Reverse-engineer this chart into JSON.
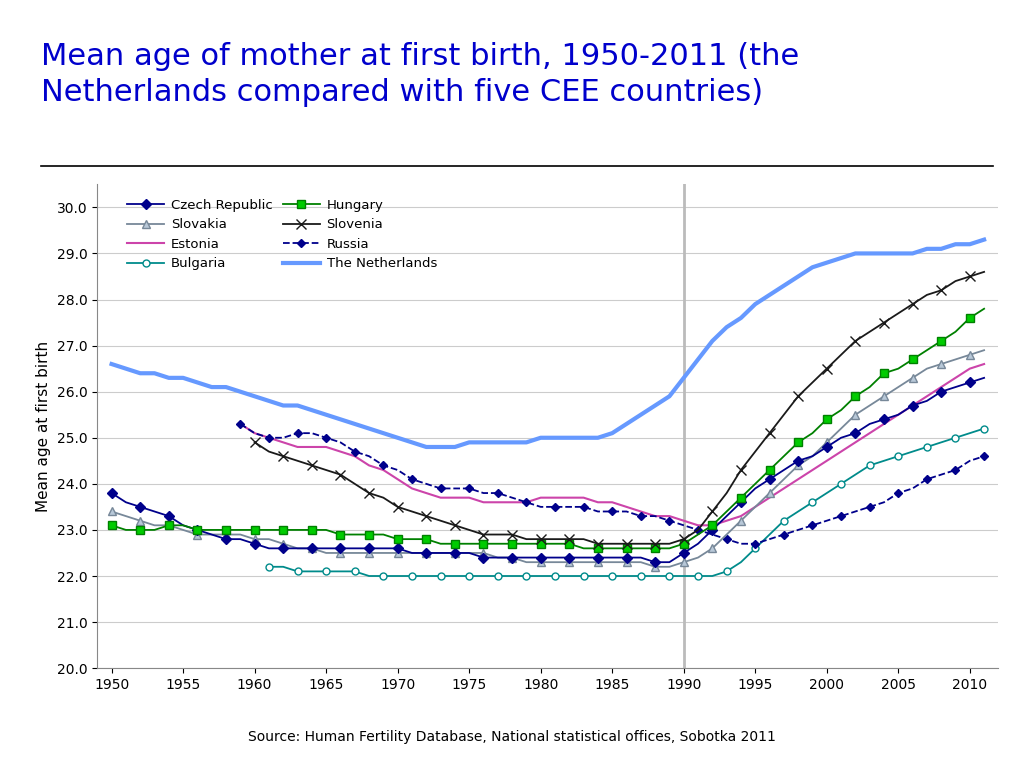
{
  "title_line1": "Mean age of mother at first birth, 1950-2011 (the",
  "title_line2": "Netherlands compared with five CEE countries)",
  "title_color": "#0000CC",
  "ylabel": "Mean age at first birth",
  "source_text": "Source: Human Fertility Database, National statistical offices, Sobotka 2011",
  "vline_x": 1990,
  "ylim": [
    20.0,
    30.5
  ],
  "yticks": [
    20.0,
    21.0,
    22.0,
    23.0,
    24.0,
    25.0,
    26.0,
    27.0,
    28.0,
    29.0,
    30.0
  ],
  "xlim": [
    1949,
    2012
  ],
  "xticks": [
    1950,
    1955,
    1960,
    1965,
    1970,
    1975,
    1980,
    1985,
    1990,
    1995,
    2000,
    2005,
    2010
  ],
  "series": {
    "Czech Republic": {
      "color": "#00008B",
      "marker": "D",
      "markersize": 5,
      "linewidth": 1.3,
      "markerfacecolor": "#00008B",
      "markevery": 2,
      "zorder": 5,
      "data": {
        "1950": 23.8,
        "1951": 23.6,
        "1952": 23.5,
        "1953": 23.4,
        "1954": 23.3,
        "1955": 23.1,
        "1956": 23.0,
        "1957": 22.9,
        "1958": 22.8,
        "1959": 22.8,
        "1960": 22.7,
        "1961": 22.6,
        "1962": 22.6,
        "1963": 22.6,
        "1964": 22.6,
        "1965": 22.6,
        "1966": 22.6,
        "1967": 22.6,
        "1968": 22.6,
        "1969": 22.6,
        "1970": 22.6,
        "1971": 22.5,
        "1972": 22.5,
        "1973": 22.5,
        "1974": 22.5,
        "1975": 22.5,
        "1976": 22.4,
        "1977": 22.4,
        "1978": 22.4,
        "1979": 22.4,
        "1980": 22.4,
        "1981": 22.4,
        "1982": 22.4,
        "1983": 22.4,
        "1984": 22.4,
        "1985": 22.4,
        "1986": 22.4,
        "1987": 22.4,
        "1988": 22.3,
        "1989": 22.3,
        "1990": 22.5,
        "1991": 22.7,
        "1992": 23.0,
        "1993": 23.3,
        "1994": 23.6,
        "1995": 23.9,
        "1996": 24.1,
        "1997": 24.3,
        "1998": 24.5,
        "1999": 24.6,
        "2000": 24.8,
        "2001": 25.0,
        "2002": 25.1,
        "2003": 25.3,
        "2004": 25.4,
        "2005": 25.5,
        "2006": 25.7,
        "2007": 25.8,
        "2008": 26.0,
        "2009": 26.1,
        "2010": 26.2,
        "2011": 26.3
      }
    },
    "Slovakia": {
      "color": "#778899",
      "marker": "^",
      "markersize": 6,
      "linewidth": 1.3,
      "markerfacecolor": "#B8C8D8",
      "markevery": 2,
      "zorder": 4,
      "data": {
        "1950": 23.4,
        "1951": 23.3,
        "1952": 23.2,
        "1953": 23.1,
        "1954": 23.1,
        "1955": 23.0,
        "1956": 22.9,
        "1957": 22.9,
        "1958": 22.9,
        "1959": 22.9,
        "1960": 22.8,
        "1961": 22.8,
        "1962": 22.7,
        "1963": 22.6,
        "1964": 22.6,
        "1965": 22.5,
        "1966": 22.5,
        "1967": 22.5,
        "1968": 22.5,
        "1969": 22.5,
        "1970": 22.5,
        "1971": 22.5,
        "1972": 22.5,
        "1973": 22.5,
        "1974": 22.5,
        "1975": 22.5,
        "1976": 22.5,
        "1977": 22.4,
        "1978": 22.4,
        "1979": 22.3,
        "1980": 22.3,
        "1981": 22.3,
        "1982": 22.3,
        "1983": 22.3,
        "1984": 22.3,
        "1985": 22.3,
        "1986": 22.3,
        "1987": 22.3,
        "1988": 22.2,
        "1989": 22.2,
        "1990": 22.3,
        "1991": 22.4,
        "1992": 22.6,
        "1993": 22.9,
        "1994": 23.2,
        "1995": 23.5,
        "1996": 23.8,
        "1997": 24.1,
        "1998": 24.4,
        "1999": 24.6,
        "2000": 24.9,
        "2001": 25.2,
        "2002": 25.5,
        "2003": 25.7,
        "2004": 25.9,
        "2005": 26.1,
        "2006": 26.3,
        "2007": 26.5,
        "2008": 26.6,
        "2009": 26.7,
        "2010": 26.8,
        "2011": 26.9
      }
    },
    "Estonia": {
      "color": "#CC44AA",
      "marker": "None",
      "markersize": 0,
      "linewidth": 1.5,
      "markerfacecolor": "#CC44AA",
      "markevery": 1,
      "zorder": 3,
      "data": {
        "1959": 25.3,
        "1960": 25.1,
        "1961": 25.0,
        "1962": 24.9,
        "1963": 24.8,
        "1964": 24.8,
        "1965": 24.8,
        "1966": 24.7,
        "1967": 24.6,
        "1968": 24.4,
        "1969": 24.3,
        "1970": 24.1,
        "1971": 23.9,
        "1972": 23.8,
        "1973": 23.7,
        "1974": 23.7,
        "1975": 23.7,
        "1976": 23.6,
        "1977": 23.6,
        "1978": 23.6,
        "1979": 23.6,
        "1980": 23.7,
        "1981": 23.7,
        "1982": 23.7,
        "1983": 23.7,
        "1984": 23.6,
        "1985": 23.6,
        "1986": 23.5,
        "1987": 23.4,
        "1988": 23.3,
        "1989": 23.3,
        "1990": 23.2,
        "1991": 23.1,
        "1992": 23.1,
        "1993": 23.2,
        "1994": 23.3,
        "1995": 23.5,
        "1996": 23.7,
        "1997": 23.9,
        "1998": 24.1,
        "1999": 24.3,
        "2000": 24.5,
        "2001": 24.7,
        "2002": 24.9,
        "2003": 25.1,
        "2004": 25.3,
        "2005": 25.5,
        "2006": 25.7,
        "2007": 25.9,
        "2008": 26.1,
        "2009": 26.3,
        "2010": 26.5,
        "2011": 26.6
      }
    },
    "Bulgaria": {
      "color": "#008B8B",
      "marker": "o",
      "markersize": 5,
      "linewidth": 1.3,
      "markerfacecolor": "white",
      "markevery": 2,
      "zorder": 4,
      "data": {
        "1961": 22.2,
        "1962": 22.2,
        "1963": 22.1,
        "1964": 22.1,
        "1965": 22.1,
        "1966": 22.1,
        "1967": 22.1,
        "1968": 22.0,
        "1969": 22.0,
        "1970": 22.0,
        "1971": 22.0,
        "1972": 22.0,
        "1973": 22.0,
        "1974": 22.0,
        "1975": 22.0,
        "1976": 22.0,
        "1977": 22.0,
        "1978": 22.0,
        "1979": 22.0,
        "1980": 22.0,
        "1981": 22.0,
        "1982": 22.0,
        "1983": 22.0,
        "1984": 22.0,
        "1985": 22.0,
        "1986": 22.0,
        "1987": 22.0,
        "1988": 22.0,
        "1989": 22.0,
        "1990": 22.0,
        "1991": 22.0,
        "1992": 22.0,
        "1993": 22.1,
        "1994": 22.3,
        "1995": 22.6,
        "1996": 22.9,
        "1997": 23.2,
        "1998": 23.4,
        "1999": 23.6,
        "2000": 23.8,
        "2001": 24.0,
        "2002": 24.2,
        "2003": 24.4,
        "2004": 24.5,
        "2005": 24.6,
        "2006": 24.7,
        "2007": 24.8,
        "2008": 24.9,
        "2009": 25.0,
        "2010": 25.1,
        "2011": 25.2
      }
    },
    "Hungary": {
      "color": "#008000",
      "marker": "s",
      "markersize": 6,
      "linewidth": 1.3,
      "markerfacecolor": "#00CC00",
      "markevery": 2,
      "zorder": 5,
      "data": {
        "1950": 23.1,
        "1951": 23.0,
        "1952": 23.0,
        "1953": 23.0,
        "1954": 23.1,
        "1955": 23.1,
        "1956": 23.0,
        "1957": 23.0,
        "1958": 23.0,
        "1959": 23.0,
        "1960": 23.0,
        "1961": 23.0,
        "1962": 23.0,
        "1963": 23.0,
        "1964": 23.0,
        "1965": 23.0,
        "1966": 22.9,
        "1967": 22.9,
        "1968": 22.9,
        "1969": 22.9,
        "1970": 22.8,
        "1971": 22.8,
        "1972": 22.8,
        "1973": 22.7,
        "1974": 22.7,
        "1975": 22.7,
        "1976": 22.7,
        "1977": 22.7,
        "1978": 22.7,
        "1979": 22.7,
        "1980": 22.7,
        "1981": 22.7,
        "1982": 22.7,
        "1983": 22.6,
        "1984": 22.6,
        "1985": 22.6,
        "1986": 22.6,
        "1987": 22.6,
        "1988": 22.6,
        "1989": 22.6,
        "1990": 22.7,
        "1991": 22.9,
        "1992": 23.1,
        "1993": 23.4,
        "1994": 23.7,
        "1995": 24.0,
        "1996": 24.3,
        "1997": 24.6,
        "1998": 24.9,
        "1999": 25.1,
        "2000": 25.4,
        "2001": 25.6,
        "2002": 25.9,
        "2003": 26.1,
        "2004": 26.4,
        "2005": 26.5,
        "2006": 26.7,
        "2007": 26.9,
        "2008": 27.1,
        "2009": 27.3,
        "2010": 27.6,
        "2011": 27.8
      }
    },
    "Slovenia": {
      "color": "#1a1a1a",
      "marker": "x",
      "markersize": 7,
      "linewidth": 1.3,
      "markerfacecolor": "#1a1a1a",
      "markevery": 2,
      "zorder": 6,
      "data": {
        "1960": 24.9,
        "1961": 24.7,
        "1962": 24.6,
        "1963": 24.5,
        "1964": 24.4,
        "1965": 24.3,
        "1966": 24.2,
        "1967": 24.0,
        "1968": 23.8,
        "1969": 23.7,
        "1970": 23.5,
        "1971": 23.4,
        "1972": 23.3,
        "1973": 23.2,
        "1974": 23.1,
        "1975": 23.0,
        "1976": 22.9,
        "1977": 22.9,
        "1978": 22.9,
        "1979": 22.8,
        "1980": 22.8,
        "1981": 22.8,
        "1982": 22.8,
        "1983": 22.8,
        "1984": 22.7,
        "1985": 22.7,
        "1986": 22.7,
        "1987": 22.7,
        "1988": 22.7,
        "1989": 22.7,
        "1990": 22.8,
        "1991": 23.0,
        "1992": 23.4,
        "1993": 23.8,
        "1994": 24.3,
        "1995": 24.7,
        "1996": 25.1,
        "1997": 25.5,
        "1998": 25.9,
        "1999": 26.2,
        "2000": 26.5,
        "2001": 26.8,
        "2002": 27.1,
        "2003": 27.3,
        "2004": 27.5,
        "2005": 27.7,
        "2006": 27.9,
        "2007": 28.1,
        "2008": 28.2,
        "2009": 28.4,
        "2010": 28.5,
        "2011": 28.6
      }
    },
    "Russia": {
      "color": "#00008B",
      "marker": "D",
      "markersize": 4,
      "linewidth": 1.3,
      "markerfacecolor": "#00008B",
      "markevery": 2,
      "zorder": 4,
      "linestyle": "--",
      "data": {
        "1959": 25.3,
        "1960": 25.1,
        "1961": 25.0,
        "1962": 25.0,
        "1963": 25.1,
        "1964": 25.1,
        "1965": 25.0,
        "1966": 24.9,
        "1967": 24.7,
        "1968": 24.6,
        "1969": 24.4,
        "1970": 24.3,
        "1971": 24.1,
        "1972": 24.0,
        "1973": 23.9,
        "1974": 23.9,
        "1975": 23.9,
        "1976": 23.8,
        "1977": 23.8,
        "1978": 23.7,
        "1979": 23.6,
        "1980": 23.5,
        "1981": 23.5,
        "1982": 23.5,
        "1983": 23.5,
        "1984": 23.4,
        "1985": 23.4,
        "1986": 23.4,
        "1987": 23.3,
        "1988": 23.3,
        "1989": 23.2,
        "1990": 23.1,
        "1991": 23.0,
        "1992": 22.9,
        "1993": 22.8,
        "1994": 22.7,
        "1995": 22.7,
        "1996": 22.8,
        "1997": 22.9,
        "1998": 23.0,
        "1999": 23.1,
        "2000": 23.2,
        "2001": 23.3,
        "2002": 23.4,
        "2003": 23.5,
        "2004": 23.6,
        "2005": 23.8,
        "2006": 23.9,
        "2007": 24.1,
        "2008": 24.2,
        "2009": 24.3,
        "2010": 24.5,
        "2011": 24.6
      }
    },
    "The Netherlands": {
      "color": "#6699FF",
      "marker": "None",
      "markersize": 0,
      "linewidth": 3.0,
      "markerfacecolor": "#6699FF",
      "markevery": 1,
      "zorder": 2,
      "linestyle": "-",
      "data": {
        "1950": 26.6,
        "1951": 26.5,
        "1952": 26.4,
        "1953": 26.4,
        "1954": 26.3,
        "1955": 26.3,
        "1956": 26.2,
        "1957": 26.1,
        "1958": 26.1,
        "1959": 26.0,
        "1960": 25.9,
        "1961": 25.8,
        "1962": 25.7,
        "1963": 25.7,
        "1964": 25.6,
        "1965": 25.5,
        "1966": 25.4,
        "1967": 25.3,
        "1968": 25.2,
        "1969": 25.1,
        "1970": 25.0,
        "1971": 24.9,
        "1972": 24.8,
        "1973": 24.8,
        "1974": 24.8,
        "1975": 24.9,
        "1976": 24.9,
        "1977": 24.9,
        "1978": 24.9,
        "1979": 24.9,
        "1980": 25.0,
        "1981": 25.0,
        "1982": 25.0,
        "1983": 25.0,
        "1984": 25.0,
        "1985": 25.1,
        "1986": 25.3,
        "1987": 25.5,
        "1988": 25.7,
        "1989": 25.9,
        "1990": 26.3,
        "1991": 26.7,
        "1992": 27.1,
        "1993": 27.4,
        "1994": 27.6,
        "1995": 27.9,
        "1996": 28.1,
        "1997": 28.3,
        "1998": 28.5,
        "1999": 28.7,
        "2000": 28.8,
        "2001": 28.9,
        "2002": 29.0,
        "2003": 29.0,
        "2004": 29.0,
        "2005": 29.0,
        "2006": 29.0,
        "2007": 29.1,
        "2008": 29.1,
        "2009": 29.2,
        "2010": 29.2,
        "2011": 29.3
      }
    }
  }
}
